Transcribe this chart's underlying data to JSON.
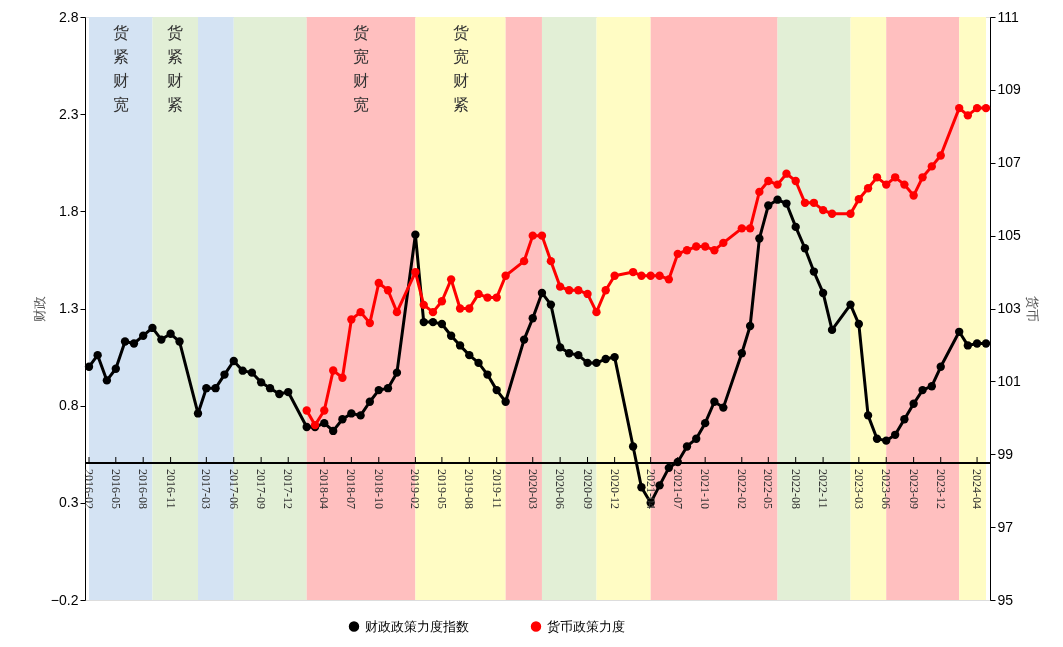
{
  "chart_data": {
    "type": "line",
    "x": [
      "2016-02",
      "2016-03",
      "2016-04",
      "2016-05",
      "2016-06",
      "2016-07",
      "2016-08",
      "2016-09",
      "2016-10",
      "2016-11",
      "2016-12",
      "2017-02",
      "2017-03",
      "2017-04",
      "2017-05",
      "2017-06",
      "2017-07",
      "2017-08",
      "2017-09",
      "2017-10",
      "2017-11",
      "2017-12",
      "2018-02",
      "2018-03",
      "2018-04",
      "2018-05",
      "2018-06",
      "2018-07",
      "2018-08",
      "2018-09",
      "2018-10",
      "2018-11",
      "2018-12",
      "2019-02",
      "2019-03",
      "2019-04",
      "2019-05",
      "2019-06",
      "2019-07",
      "2019-08",
      "2019-09",
      "2019-10",
      "2019-11",
      "2019-12",
      "2020-02",
      "2020-03",
      "2020-04",
      "2020-05",
      "2020-06",
      "2020-07",
      "2020-08",
      "2020-09",
      "2020-10",
      "2020-11",
      "2020-12",
      "2021-02",
      "2021-03",
      "2021-04",
      "2021-05",
      "2021-06",
      "2021-07",
      "2021-08",
      "2021-09",
      "2021-10",
      "2021-11",
      "2021-12",
      "2022-02",
      "2022-03",
      "2022-04",
      "2022-05",
      "2022-06",
      "2022-07",
      "2022-08",
      "2022-09",
      "2022-10",
      "2022-11",
      "2022-12",
      "2023-02",
      "2023-03",
      "2023-04",
      "2023-05",
      "2023-06",
      "2023-07",
      "2023-08",
      "2023-09",
      "2023-10",
      "2023-11",
      "2023-12",
      "2024-02",
      "2024-03",
      "2024-04",
      "2024-05"
    ],
    "series": [
      {
        "name": "财政政策力度指数",
        "color": "#000000",
        "values": [
          1.0,
          1.06,
          0.93,
          0.99,
          1.13,
          1.12,
          1.16,
          1.2,
          1.14,
          1.17,
          1.13,
          0.76,
          0.89,
          0.89,
          0.96,
          1.03,
          0.98,
          0.97,
          0.92,
          0.89,
          0.86,
          0.87,
          0.69,
          0.69,
          0.71,
          0.67,
          0.73,
          0.76,
          0.75,
          0.82,
          0.88,
          0.89,
          0.97,
          1.68,
          1.23,
          1.23,
          1.22,
          1.16,
          1.11,
          1.06,
          1.02,
          0.96,
          0.88,
          0.82,
          1.14,
          1.25,
          1.38,
          1.32,
          1.1,
          1.07,
          1.06,
          1.02,
          1.02,
          1.04,
          1.05,
          0.59,
          0.38,
          0.3,
          0.39,
          0.48,
          0.51,
          0.59,
          0.63,
          0.71,
          0.82,
          0.79,
          1.07,
          1.21,
          1.66,
          1.83,
          1.86,
          1.84,
          1.72,
          1.61,
          1.49,
          1.38,
          1.19,
          1.32,
          1.22,
          0.75,
          0.63,
          0.62,
          0.65,
          0.73,
          0.81,
          0.88,
          0.9,
          1.0,
          1.18,
          1.11,
          1.12,
          1.12
        ]
      },
      {
        "name": "货币政策力度",
        "color": "#ff0000",
        "axis": "y2",
        "values": [
          null,
          null,
          null,
          null,
          null,
          null,
          null,
          null,
          null,
          null,
          null,
          null,
          null,
          null,
          null,
          null,
          null,
          null,
          null,
          null,
          null,
          null,
          100.2,
          99.8,
          100.2,
          101.3,
          101.1,
          102.7,
          102.9,
          102.6,
          103.7,
          103.5,
          102.9,
          104.0,
          103.1,
          102.9,
          103.2,
          103.8,
          103.0,
          103.0,
          103.4,
          103.3,
          103.3,
          103.9,
          104.3,
          105.0,
          105.0,
          104.3,
          103.6,
          103.5,
          103.5,
          103.4,
          102.9,
          103.5,
          103.9,
          104.0,
          103.9,
          103.9,
          103.9,
          103.8,
          104.5,
          104.6,
          104.7,
          104.7,
          104.6,
          104.8,
          105.2,
          105.2,
          106.2,
          106.5,
          106.4,
          106.7,
          106.5,
          105.9,
          105.9,
          105.7,
          105.6,
          105.6,
          106.0,
          106.3,
          106.6,
          106.4,
          106.6,
          106.4,
          106.1,
          106.6,
          106.9,
          107.2,
          108.5,
          108.3,
          108.5,
          108.5
        ]
      }
    ],
    "ylabel": "财政",
    "y2label": "货币",
    "xlim": [
      "2016-02",
      "2024-05"
    ],
    "xticks": [
      "2016-02",
      "2016-05",
      "2016-08",
      "2016-11",
      "2017-03",
      "2017-06",
      "2017-09",
      "2017-12",
      "2018-04",
      "2018-07",
      "2018-10",
      "2019-02",
      "2019-05",
      "2019-08",
      "2019-11",
      "2020-03",
      "2020-06",
      "2020-09",
      "2020-12",
      "2021-04",
      "2021-07",
      "2021-10",
      "2022-02",
      "2022-05",
      "2022-08",
      "2022-11",
      "2023-03",
      "2023-06",
      "2023-09",
      "2023-12",
      "2024-04"
    ],
    "ylim": [
      -0.2,
      2.8
    ],
    "yticks": [
      -0.2,
      0.3,
      0.8,
      1.3,
      1.8,
      2.3,
      2.8
    ],
    "y2lim": [
      95,
      111
    ],
    "y2ticks": [
      95,
      97,
      99,
      101,
      103,
      105,
      107,
      109,
      111
    ],
    "bands": [
      {
        "axis": "x",
        "from": "2016-02",
        "to": "2016-09",
        "label": "货紧财宽",
        "color": "#d4e3f3"
      },
      {
        "axis": "x",
        "from": "2016-09",
        "to": "2017-02",
        "label": "货紧财紧",
        "color": "#e2efd6"
      },
      {
        "axis": "x",
        "from": "2017-02",
        "to": "2017-06",
        "color": "#d4e3f3"
      },
      {
        "axis": "x",
        "from": "2017-06",
        "to": "2018-02",
        "color": "#e2efd6"
      },
      {
        "axis": "x",
        "from": "2018-02",
        "to": "2019-02",
        "label": "货宽财宽",
        "color": "#ffbfbf"
      },
      {
        "axis": "x",
        "from": "2019-02",
        "to": "2019-12",
        "label": "货宽财紧",
        "color": "#fffcc4"
      },
      {
        "axis": "x",
        "from": "2019-12",
        "to": "2020-04",
        "color": "#ffbfbf"
      },
      {
        "axis": "x",
        "from": "2020-04",
        "to": "2020-10",
        "color": "#e2efd6"
      },
      {
        "axis": "x",
        "from": "2020-10",
        "to": "2021-04",
        "color": "#fffcc4"
      },
      {
        "axis": "x",
        "from": "2021-04",
        "to": "2022-06",
        "color": "#ffbfbf"
      },
      {
        "axis": "x",
        "from": "2022-06",
        "to": "2023-02",
        "color": "#e2efd6"
      },
      {
        "axis": "x",
        "from": "2023-02",
        "to": "2023-06",
        "color": "#fffcc4"
      },
      {
        "axis": "x",
        "from": "2023-06",
        "to": "2024-02",
        "color": "#ffbfbf"
      },
      {
        "axis": "x",
        "from": "2024-02",
        "to": "2024-05",
        "color": "#fffcc4"
      }
    ],
    "marker": "circle",
    "line_style": "solid",
    "legend": "bottom"
  }
}
